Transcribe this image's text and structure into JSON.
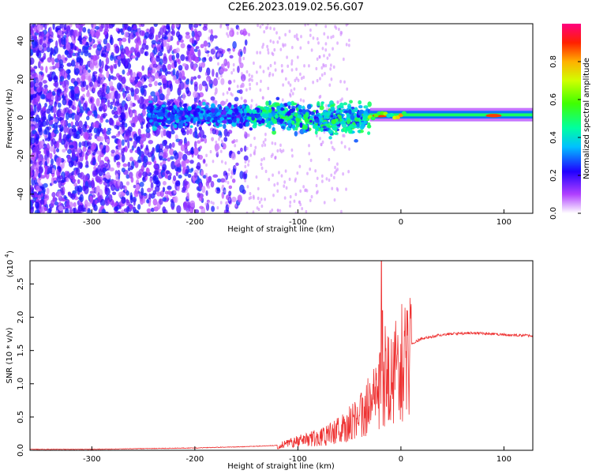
{
  "title": "C2E6.2023.019.02.56.G07",
  "chart_data": [
    {
      "type": "heatmap",
      "xlabel": "Height of straight line (km)",
      "ylabel": "Frequency (Hz)",
      "xlim": [
        -360,
        128
      ],
      "ylim": [
        -50,
        49
      ],
      "xticks": [
        -300,
        -200,
        -100,
        0,
        100
      ],
      "yticks": [
        -40,
        -20,
        0,
        20,
        40
      ],
      "colorbar": {
        "label": "Normalized spectral amplitude",
        "ticks": [
          0.0,
          0.2,
          0.4,
          0.6,
          0.8
        ],
        "range": [
          0,
          1
        ]
      },
      "signal_line": {
        "frequency": 1,
        "from_height": -30,
        "to_height": 128,
        "peak_amplitude_near": [
          -20,
          90
        ]
      }
    },
    {
      "type": "line",
      "xlabel": "Height of straight line (km)",
      "ylabel": "SNR (10 * v/v)",
      "multiplier": "(x10",
      "multiplier_exp": "4",
      "xlim": [
        -360,
        128
      ],
      "ylim": [
        0,
        2.85
      ],
      "xticks": [
        -300,
        -200,
        -100,
        0,
        100
      ],
      "yticks": [
        0.0,
        0.5,
        1.0,
        1.5,
        2.0,
        2.5
      ],
      "color": "#ee3333",
      "series": [
        {
          "x": [
            -360,
            -300,
            -250,
            -200,
            -150,
            -120,
            -100,
            -80,
            -60,
            -40,
            -30,
            -20,
            -15,
            -10,
            0,
            10,
            20,
            40,
            60,
            80,
            100,
            128
          ],
          "values": [
            0.01,
            0.01,
            0.02,
            0.03,
            0.05,
            0.07,
            0.15,
            0.22,
            0.35,
            0.55,
            0.8,
            1.05,
            1.3,
            1.35,
            1.5,
            1.6,
            1.68,
            1.74,
            1.76,
            1.76,
            1.74,
            1.72
          ]
        }
      ],
      "spike": {
        "x": -19,
        "value": 2.85
      }
    }
  ]
}
